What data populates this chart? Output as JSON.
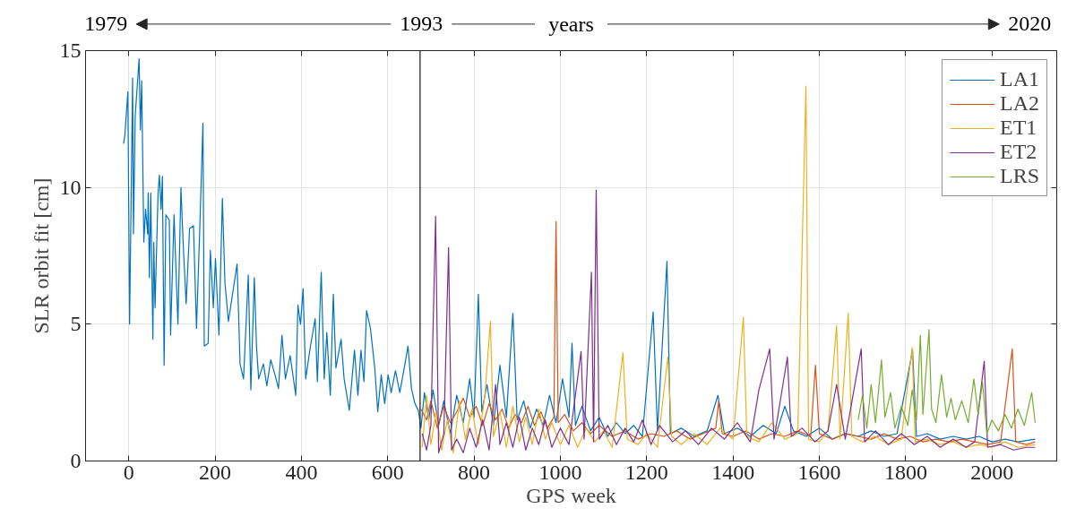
{
  "chart_data": {
    "type": "line",
    "xlabel": "GPS week",
    "ylabel": "SLR orbit fit [cm]",
    "x2label": "years",
    "xlim": [
      -100,
      2150
    ],
    "xticks": [
      0,
      200,
      400,
      600,
      800,
      1000,
      1200,
      1400,
      1600,
      1800,
      2000
    ],
    "ylim": [
      0,
      15
    ],
    "yticks": [
      0,
      5,
      10,
      15
    ],
    "x2lim": [
      1978.1,
      2021.2
    ],
    "x2ticks": [
      1979,
      1993,
      2020
    ],
    "ref_lines": [
      {
        "axis": "x",
        "value": 675,
        "color": "#262626"
      }
    ],
    "grid": true,
    "legend": "top right",
    "line_style": "solid",
    "marker": "none",
    "series": [
      {
        "name": "LA1",
        "color": "#0072bd",
        "x": [
          -12,
          -9,
          -2,
          2,
          9,
          11,
          15,
          24,
          27,
          30,
          35,
          39,
          44,
          45,
          48,
          51,
          56,
          58,
          61,
          68,
          71,
          75,
          78,
          82,
          86,
          94,
          97,
          105,
          114,
          121,
          126,
          133,
          141,
          150,
          157,
          164,
          172,
          175,
          184,
          189,
          196,
          201,
          209,
          217,
          223,
          231,
          251,
          258,
          266,
          277,
          283,
          291,
          296,
          301,
          312,
          320,
          329,
          339,
          347,
          355,
          363,
          374,
          387,
          392,
          398,
          404,
          410,
          421,
          432,
          437,
          446,
          453,
          459,
          467,
          474,
          480,
          492,
          499,
          511,
          523,
          531,
          538,
          545,
          551,
          560,
          570,
          577,
          585,
          593,
          601,
          608,
          618,
          628,
          640,
          647,
          655,
          663,
          671,
          677,
          685,
          695,
          705,
          718,
          730,
          745,
          760,
          775,
          790,
          800,
          810,
          818,
          830,
          845,
          860,
          875,
          890,
          900,
          915,
          930,
          945,
          960,
          975,
          990,
          1005,
          1020,
          1027,
          1035,
          1050,
          1070,
          1090,
          1110,
          1130,
          1150,
          1170,
          1190,
          1215,
          1225,
          1247,
          1255,
          1280,
          1310,
          1340,
          1365,
          1380,
          1410,
          1440,
          1470,
          1500,
          1520,
          1540,
          1570,
          1600,
          1630,
          1660,
          1690,
          1720,
          1750,
          1780,
          1816,
          1825,
          1850,
          1880,
          1910,
          1940,
          1970,
          2000,
          2030,
          2060,
          2100
        ],
        "values": [
          11.6,
          11.9,
          13.5,
          5.0,
          14.0,
          8.3,
          12.6,
          14.7,
          12.1,
          13.9,
          8.0,
          9.2,
          8.3,
          9.8,
          6.7,
          9.8,
          4.45,
          8.0,
          5.6,
          9.8,
          10.45,
          9.2,
          10.4,
          3.5,
          9.0,
          8.8,
          4.6,
          9.0,
          5.0,
          10.0,
          8.0,
          5.75,
          8.5,
          8.6,
          4.85,
          8.2,
          12.35,
          4.2,
          4.3,
          7.7,
          5.6,
          7.4,
          4.6,
          9.6,
          6.5,
          5.1,
          7.2,
          3.55,
          3.0,
          6.8,
          2.6,
          6.7,
          4.2,
          3.0,
          3.55,
          2.75,
          3.7,
          3.15,
          2.65,
          4.6,
          3.0,
          3.85,
          2.4,
          5.7,
          5.0,
          6.3,
          3.0,
          4.2,
          5.2,
          2.9,
          6.9,
          3.0,
          4.7,
          2.4,
          6.1,
          3.4,
          4.45,
          3.0,
          1.85,
          4.05,
          2.4,
          4.05,
          2.9,
          5.5,
          4.85,
          3.4,
          1.8,
          3.15,
          2.1,
          3.15,
          2.5,
          3.3,
          2.5,
          3.55,
          4.2,
          2.65,
          2.1,
          1.85,
          1.2,
          2.5,
          1.5,
          2.6,
          1.3,
          2.2,
          1.0,
          2.4,
          1.4,
          3.0,
          1.6,
          6.1,
          1.8,
          2.8,
          1.3,
          3.5,
          1.6,
          5.4,
          1.5,
          2.2,
          1.2,
          1.9,
          1.3,
          2.4,
          1.4,
          3.0,
          1.6,
          4.3,
          1.3,
          2.0,
          1.1,
          1.6,
          0.9,
          1.4,
          1.0,
          1.3,
          0.9,
          5.45,
          1.1,
          7.3,
          1.0,
          1.2,
          0.9,
          1.1,
          2.4,
          1.0,
          1.2,
          0.9,
          1.3,
          1.0,
          2.0,
          1.1,
          0.9,
          1.2,
          0.8,
          1.0,
          0.9,
          1.1,
          0.9,
          1.0,
          4.05,
          0.9,
          1.0,
          0.8,
          0.9,
          0.8,
          0.9,
          0.7,
          0.8,
          0.7,
          0.8
        ]
      },
      {
        "name": "LA2",
        "color": "#d95319",
        "x": [
          677,
          690,
          700,
          715,
          730,
          745,
          760,
          775,
          790,
          805,
          820,
          835,
          850,
          865,
          880,
          895,
          910,
          925,
          940,
          955,
          970,
          985,
          990,
          995,
          1010,
          1030,
          1050,
          1070,
          1090,
          1120,
          1150,
          1180,
          1210,
          1240,
          1270,
          1300,
          1330,
          1360,
          1367,
          1375,
          1400,
          1430,
          1460,
          1490,
          1520,
          1550,
          1580,
          1591,
          1600,
          1630,
          1660,
          1690,
          1720,
          1750,
          1780,
          1810,
          1840,
          1870,
          1900,
          1930,
          1960,
          1990,
          2020,
          2047,
          2055,
          2080,
          2100
        ],
        "values": [
          1.9,
          1.5,
          2.2,
          1.2,
          2.0,
          1.4,
          1.8,
          2.3,
          1.6,
          2.0,
          1.3,
          2.1,
          1.5,
          1.9,
          1.2,
          1.7,
          1.4,
          2.0,
          1.3,
          1.8,
          1.2,
          1.6,
          8.75,
          1.4,
          1.7,
          1.1,
          1.4,
          1.0,
          1.3,
          0.9,
          1.1,
          0.8,
          1.0,
          0.9,
          1.1,
          0.8,
          1.0,
          1.2,
          2.2,
          1.0,
          0.9,
          1.1,
          0.8,
          1.0,
          0.9,
          1.1,
          0.9,
          3.5,
          1.0,
          0.8,
          1.0,
          0.9,
          0.8,
          1.0,
          0.8,
          0.9,
          0.7,
          0.8,
          0.7,
          0.8,
          0.7,
          0.6,
          0.7,
          4.1,
          0.7,
          0.6,
          0.7
        ]
      },
      {
        "name": "ET1",
        "color": "#edb120",
        "x": [
          680,
          690,
          700,
          712,
          725,
          738,
          752,
          766,
          780,
          795,
          810,
          825,
          838,
          845,
          860,
          875,
          890,
          905,
          920,
          935,
          950,
          965,
          980,
          1000,
          1020,
          1040,
          1060,
          1080,
          1100,
          1120,
          1145,
          1155,
          1180,
          1200,
          1225,
          1249,
          1258,
          1280,
          1310,
          1340,
          1370,
          1400,
          1424,
          1432,
          1460,
          1490,
          1520,
          1550,
          1569,
          1575,
          1600,
          1620,
          1640,
          1648,
          1667,
          1675,
          1700,
          1730,
          1760,
          1790,
          1815,
          1822,
          1850,
          1880,
          1910,
          1940,
          1970,
          2000,
          2030,
          2060,
          2100
        ],
        "values": [
          0.5,
          2.4,
          0.6,
          1.8,
          0.4,
          1.5,
          0.3,
          2.2,
          0.8,
          1.9,
          0.6,
          2.4,
          5.1,
          0.9,
          1.8,
          0.5,
          2.0,
          0.7,
          1.6,
          0.6,
          1.9,
          0.8,
          1.4,
          0.6,
          1.3,
          0.5,
          1.2,
          0.7,
          1.1,
          0.5,
          3.95,
          0.8,
          0.6,
          1.0,
          0.5,
          3.8,
          0.9,
          0.6,
          1.0,
          0.6,
          1.2,
          0.8,
          5.25,
          0.9,
          0.7,
          1.4,
          0.8,
          1.0,
          13.7,
          0.8,
          0.7,
          1.1,
          4.95,
          0.8,
          5.4,
          0.9,
          0.7,
          0.9,
          0.6,
          0.8,
          4.15,
          0.7,
          0.8,
          0.6,
          0.7,
          0.5,
          0.6,
          0.5,
          0.7,
          0.5,
          0.6
        ]
      },
      {
        "name": "ET2",
        "color": "#7e2f8e",
        "x": [
          680,
          690,
          700,
          711,
          718,
          730,
          741,
          748,
          760,
          775,
          790,
          805,
          820,
          835,
          850,
          860,
          875,
          890,
          905,
          920,
          935,
          950,
          965,
          980,
          1000,
          1020,
          1048,
          1055,
          1072,
          1077,
          1083,
          1090,
          1110,
          1130,
          1150,
          1170,
          1190,
          1210,
          1230,
          1260,
          1290,
          1320,
          1350,
          1380,
          1410,
          1440,
          1460,
          1485,
          1495,
          1526,
          1535,
          1560,
          1590,
          1620,
          1640,
          1660,
          1697,
          1705,
          1730,
          1760,
          1790,
          1820,
          1850,
          1880,
          1910,
          1940,
          1960,
          1982,
          1990,
          2020,
          2050,
          2080,
          2100
        ],
        "values": [
          1.0,
          0.4,
          1.3,
          8.95,
          0.3,
          1.0,
          7.8,
          0.4,
          0.8,
          0.3,
          1.2,
          0.5,
          1.5,
          0.4,
          2.8,
          0.6,
          1.4,
          0.5,
          1.6,
          0.4,
          1.2,
          0.6,
          1.5,
          0.5,
          1.2,
          0.6,
          4.0,
          0.8,
          6.9,
          0.7,
          9.9,
          0.8,
          1.3,
          0.6,
          1.2,
          0.7,
          1.5,
          0.6,
          1.3,
          0.7,
          1.1,
          0.6,
          1.2,
          0.8,
          1.4,
          0.7,
          2.6,
          4.1,
          0.8,
          3.8,
          0.9,
          1.2,
          0.7,
          1.1,
          2.8,
          0.8,
          4.1,
          0.7,
          1.1,
          0.6,
          1.0,
          0.6,
          0.9,
          0.5,
          0.8,
          0.5,
          0.7,
          3.65,
          0.5,
          0.6,
          0.4,
          0.5,
          0.5
        ]
      },
      {
        "name": "LRS",
        "color": "#77ac30",
        "x": [
          1690,
          1700,
          1710,
          1720,
          1730,
          1744,
          1752,
          1765,
          1775,
          1790,
          1805,
          1815,
          1825,
          1834,
          1840,
          1854,
          1860,
          1870,
          1883,
          1895,
          1905,
          1915,
          1930,
          1945,
          1958,
          1968,
          1978,
          1988,
          2000,
          2015,
          2030,
          2045,
          2060,
          2075,
          2092,
          2100
        ],
        "values": [
          1.5,
          2.4,
          1.2,
          2.8,
          1.4,
          3.7,
          1.6,
          2.5,
          1.2,
          2.0,
          1.3,
          2.6,
          1.5,
          4.6,
          1.7,
          4.8,
          1.9,
          1.4,
          3.15,
          1.6,
          2.3,
          1.5,
          2.2,
          1.4,
          3.0,
          1.7,
          2.9,
          1.0,
          1.5,
          1.1,
          1.7,
          1.2,
          1.9,
          1.3,
          2.5,
          1.4
        ]
      }
    ]
  }
}
